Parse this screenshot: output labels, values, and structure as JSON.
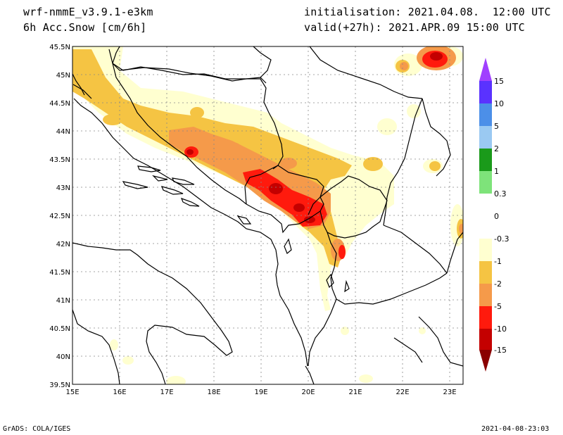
{
  "header": {
    "model": "wrf-nmmE_v3.9.1-e3km",
    "field": "6h Acc.Snow [cm/6h]",
    "init": "initialisation: 2021.04.08.  12:00 UTC",
    "valid": "valid(+27h): 2021.APR.09 15:00 UTC"
  },
  "footer": {
    "left": "GrADS: COLA/IGES",
    "right": "2021-04-08-23:03"
  },
  "map": {
    "lon_ticks": [
      "15E",
      "16E",
      "17E",
      "18E",
      "19E",
      "20E",
      "21E",
      "22E",
      "23E"
    ],
    "lat_ticks": [
      "45.5N",
      "45N",
      "44.5N",
      "44N",
      "43.5N",
      "43N",
      "42.5N",
      "42N",
      "41.5N",
      "41N",
      "40.5N",
      "40N",
      "39.5N"
    ]
  },
  "colorbar": {
    "labels": [
      "15",
      "10",
      "5",
      "2",
      "1",
      "0.3",
      "0",
      "-0.3",
      "-1",
      "-2",
      "-5",
      "-10",
      "-15"
    ],
    "colors": {
      "top_arrow": "#a040ff",
      "c1": "#5a32ff",
      "c2": "#4c8fe8",
      "c3": "#9ac9f2",
      "c4": "#1a9a1a",
      "c5": "#7ee37a",
      "c6": "#ffffff",
      "c7": "#ffffd0",
      "c8": "#f5c443",
      "c9": "#f59a4a",
      "c10": "#ff1a0d",
      "c11": "#c40000",
      "bottom_arrow": "#8a0000"
    }
  }
}
